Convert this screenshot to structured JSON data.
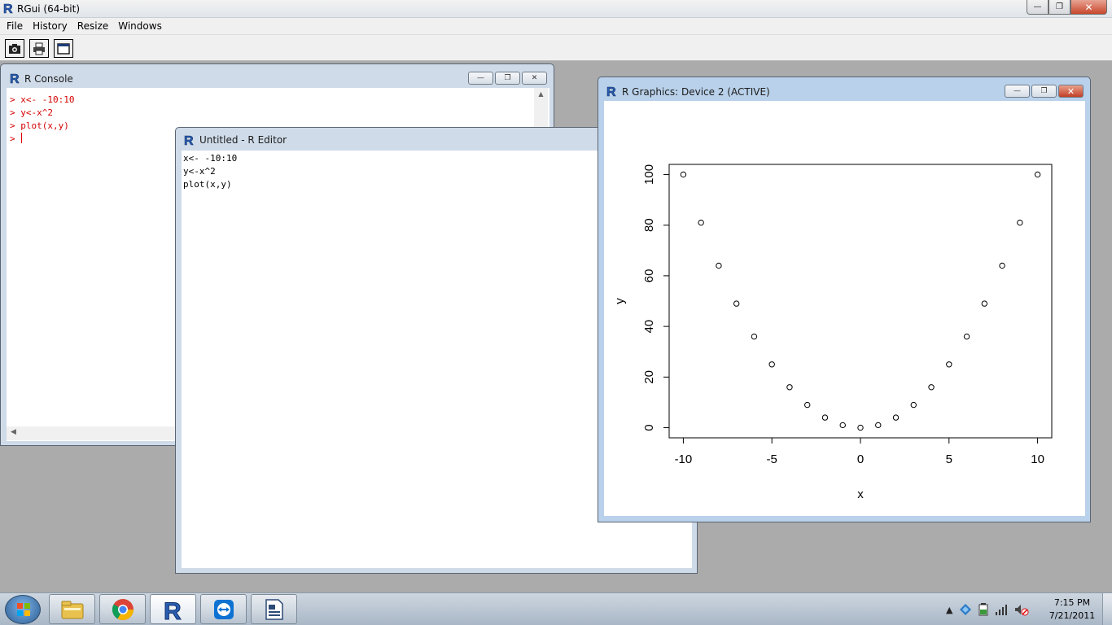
{
  "app": {
    "title": "RGui (64-bit)",
    "menu": [
      "File",
      "History",
      "Resize",
      "Windows"
    ],
    "toolbar_icons": [
      "camera-icon",
      "printer-icon",
      "window-icon"
    ]
  },
  "console": {
    "title": "R Console",
    "prompt": ">",
    "lines": [
      "x<- -10:10",
      "y<-x^2",
      "plot(x,y)",
      ""
    ]
  },
  "editor": {
    "title": "Untitled - R Editor",
    "lines": [
      "x<- -10:10",
      "y<-x^2",
      "plot(x,y)"
    ]
  },
  "graphics": {
    "title": "R Graphics: Device 2 (ACTIVE)"
  },
  "chart_data": {
    "type": "scatter",
    "title": "",
    "xlabel": "x",
    "ylabel": "y",
    "x": [
      -10,
      -9,
      -8,
      -7,
      -6,
      -5,
      -4,
      -3,
      -2,
      -1,
      0,
      1,
      2,
      3,
      4,
      5,
      6,
      7,
      8,
      9,
      10
    ],
    "y": [
      100,
      81,
      64,
      49,
      36,
      25,
      16,
      9,
      4,
      1,
      0,
      1,
      4,
      9,
      16,
      25,
      36,
      49,
      64,
      81,
      100
    ],
    "xlim": [
      -10,
      10
    ],
    "ylim": [
      0,
      100
    ],
    "xticks": [
      -10,
      -5,
      0,
      5,
      10
    ],
    "yticks": [
      0,
      20,
      40,
      60,
      80,
      100
    ],
    "marker": "open-circle",
    "grid": false
  },
  "taskbar": {
    "apps": [
      "explorer-icon",
      "chrome-icon",
      "r-icon",
      "teamviewer-icon",
      "writer-icon"
    ],
    "time": "7:15 PM",
    "date": "7/21/2011"
  }
}
